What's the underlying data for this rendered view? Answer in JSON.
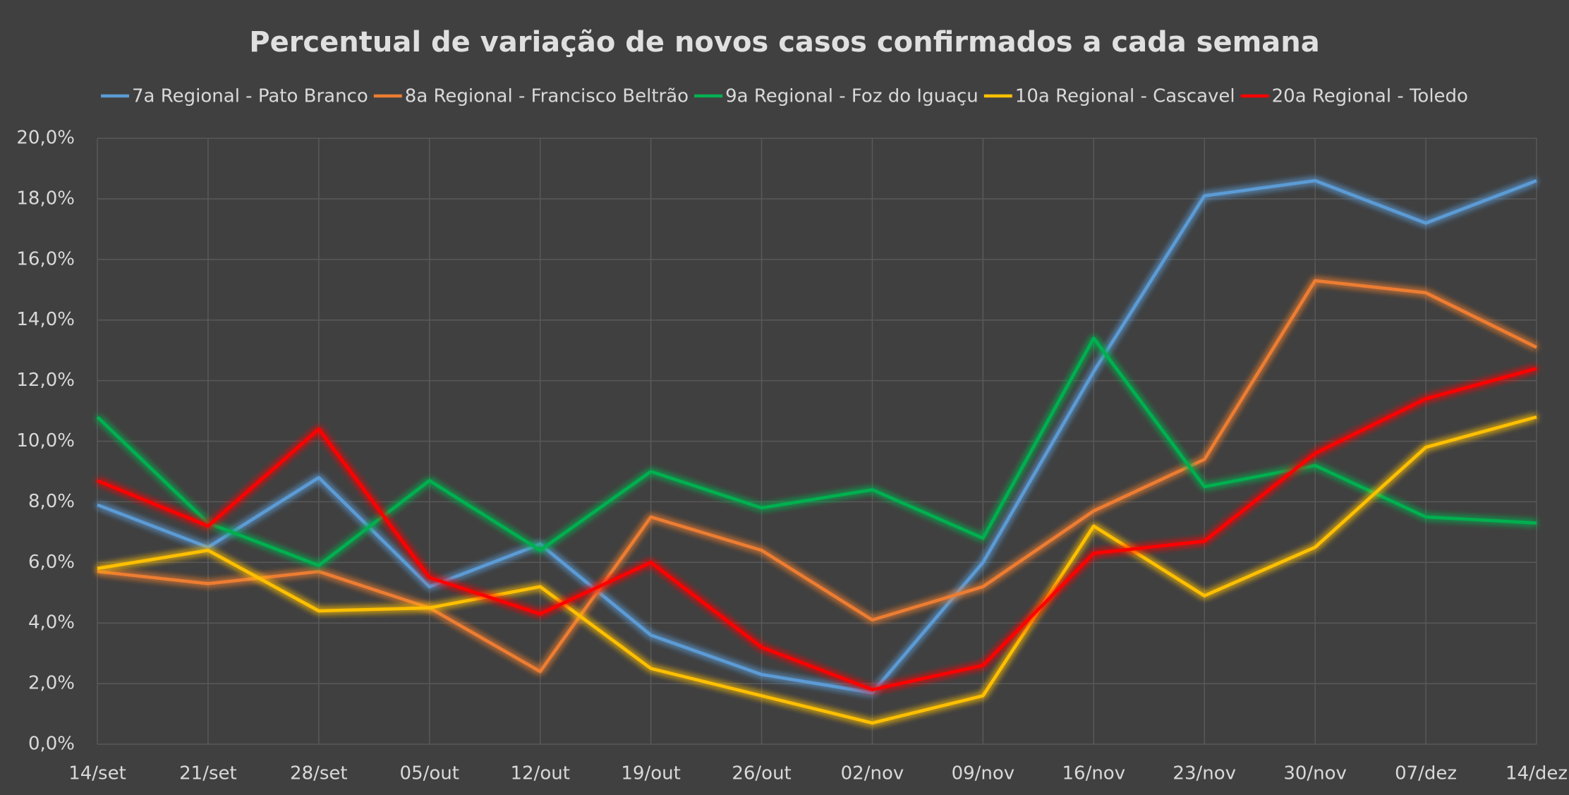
{
  "chart_data": {
    "type": "line",
    "title": "Percentual de variação de novos casos confirmados a cada semana",
    "categories": [
      "14/set",
      "21/set",
      "28/set",
      "05/out",
      "12/out",
      "19/out",
      "26/out",
      "02/nov",
      "09/nov",
      "16/nov",
      "23/nov",
      "30/nov",
      "07/dez",
      "14/dez"
    ],
    "series": [
      {
        "name": "7a Regional - Pato Branco",
        "color": "#5b9bd5",
        "values": [
          7.9,
          6.5,
          8.8,
          5.2,
          6.6,
          3.6,
          2.3,
          1.7,
          6.0,
          12.3,
          18.1,
          18.6,
          17.2,
          18.6
        ]
      },
      {
        "name": "8a Regional - Francisco Beltrão",
        "color": "#ed7d31",
        "values": [
          5.7,
          5.3,
          5.7,
          4.5,
          2.4,
          7.5,
          6.4,
          4.1,
          5.2,
          7.7,
          9.4,
          15.3,
          14.9,
          13.1
        ]
      },
      {
        "name": "9a Regional - Foz do Iguaçu",
        "color": "#00b050",
        "values": [
          10.8,
          7.3,
          5.9,
          8.7,
          6.4,
          9.0,
          7.8,
          8.4,
          6.8,
          13.4,
          8.5,
          9.2,
          7.5,
          7.3
        ]
      },
      {
        "name": "10a Regional - Cascavel",
        "color": "#ffc000",
        "values": [
          5.8,
          6.4,
          4.4,
          4.5,
          5.2,
          2.5,
          1.6,
          0.7,
          1.6,
          7.2,
          4.9,
          6.5,
          9.8,
          10.8
        ]
      },
      {
        "name": "20a Regional - Toledo",
        "color": "#ff0000",
        "values": [
          8.7,
          7.2,
          10.4,
          5.5,
          4.3,
          6.0,
          3.2,
          1.8,
          2.6,
          6.3,
          6.7,
          9.6,
          11.4,
          12.4
        ]
      }
    ],
    "ylim": [
      0,
      20
    ],
    "yticks": [
      {
        "value": 0,
        "label": "0,0%"
      },
      {
        "value": 2,
        "label": "2,0%"
      },
      {
        "value": 4,
        "label": "4,0%"
      },
      {
        "value": 6,
        "label": "6,0%"
      },
      {
        "value": 8,
        "label": "8,0%"
      },
      {
        "value": 10,
        "label": "10,0%"
      },
      {
        "value": 12,
        "label": "12,0%"
      },
      {
        "value": 14,
        "label": "14,0%"
      },
      {
        "value": 16,
        "label": "16,0%"
      },
      {
        "value": 18,
        "label": "18,0%"
      },
      {
        "value": 20,
        "label": "20,0%"
      }
    ],
    "grid": true,
    "legend": "top"
  }
}
